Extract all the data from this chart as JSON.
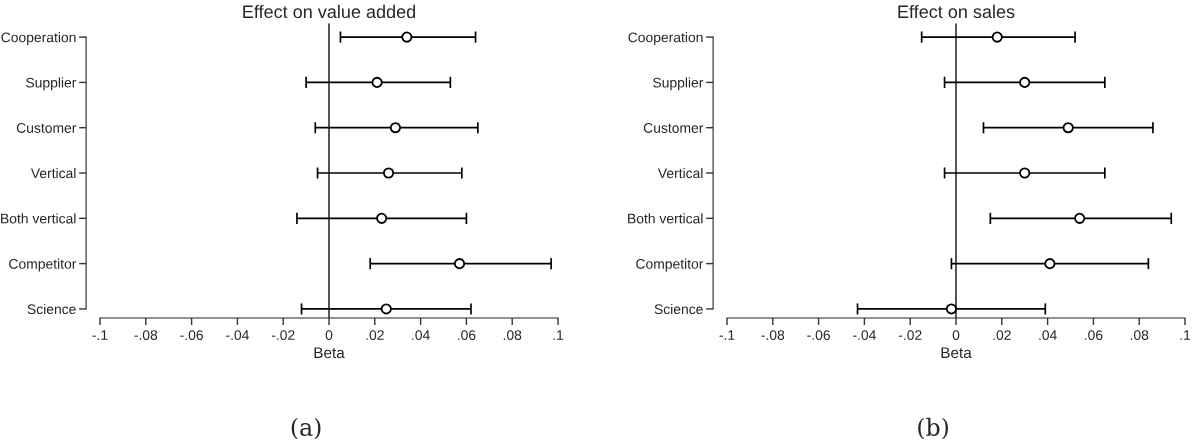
{
  "chart_data": [
    {
      "type": "scatter",
      "title": "Effect on value added",
      "xlabel": "Beta",
      "orientation": "horizontal",
      "marker": "circle",
      "color": "#000000",
      "categories": [
        "Cooperation",
        "Supplier",
        "Customer",
        "Vertical",
        "Both vertical",
        "Competitor",
        "Science"
      ],
      "values": [
        0.034,
        0.021,
        0.029,
        0.026,
        0.023,
        0.057,
        0.025
      ],
      "errors": [
        [
          0.005,
          0.064
        ],
        [
          -0.01,
          0.053
        ],
        [
          -0.006,
          0.065
        ],
        [
          -0.005,
          0.058
        ],
        [
          -0.014,
          0.06
        ],
        [
          0.018,
          0.097
        ],
        [
          -0.012,
          0.062
        ]
      ],
      "xlim": [
        -0.1,
        0.1
      ],
      "xticks": [
        {
          "value": -0.1,
          "label": "-.1"
        },
        {
          "value": -0.08,
          "label": "-.08"
        },
        {
          "value": -0.06,
          "label": "-.06"
        },
        {
          "value": -0.04,
          "label": "-.04"
        },
        {
          "value": -0.02,
          "label": "-.02"
        },
        0,
        {
          "value": 0.02,
          "label": ".02"
        },
        {
          "value": 0.04,
          "label": ".04"
        },
        {
          "value": 0.06,
          "label": ".06"
        },
        {
          "value": 0.08,
          "label": ".08"
        },
        {
          "value": 0.1,
          "label": ".1"
        }
      ],
      "ref_lines": [
        {
          "axis": "x",
          "value": 0
        }
      ],
      "annotations": [
        "(a)"
      ]
    },
    {
      "type": "scatter",
      "title": "Effect on sales",
      "xlabel": "Beta",
      "orientation": "horizontal",
      "marker": "circle",
      "color": "#000000",
      "categories": [
        "Cooperation",
        "Supplier",
        "Customer",
        "Vertical",
        "Both vertical",
        "Competitor",
        "Science"
      ],
      "values": [
        0.018,
        0.03,
        0.049,
        0.03,
        0.054,
        0.041,
        -0.002
      ],
      "errors": [
        [
          -0.015,
          0.052
        ],
        [
          -0.005,
          0.065
        ],
        [
          0.012,
          0.086
        ],
        [
          -0.005,
          0.065
        ],
        [
          0.015,
          0.094
        ],
        [
          -0.002,
          0.084
        ],
        [
          -0.043,
          0.039
        ]
      ],
      "xlim": [
        -0.1,
        0.1
      ],
      "xticks": [
        {
          "value": -0.1,
          "label": "-.1"
        },
        {
          "value": -0.08,
          "label": "-.08"
        },
        {
          "value": -0.06,
          "label": "-.06"
        },
        {
          "value": -0.04,
          "label": "-.04"
        },
        {
          "value": -0.02,
          "label": "-.02"
        },
        0,
        {
          "value": 0.02,
          "label": ".02"
        },
        {
          "value": 0.04,
          "label": ".04"
        },
        {
          "value": 0.06,
          "label": ".06"
        },
        {
          "value": 0.08,
          "label": ".08"
        },
        {
          "value": 0.1,
          "label": ".1"
        }
      ],
      "ref_lines": [
        {
          "axis": "x",
          "value": 0
        }
      ],
      "annotations": [
        "(b)"
      ]
    }
  ]
}
